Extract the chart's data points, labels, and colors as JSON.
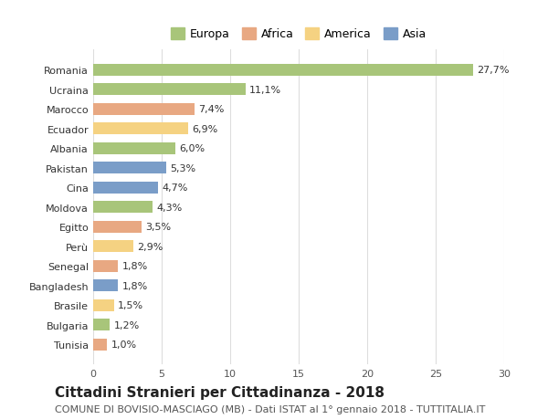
{
  "countries": [
    "Romania",
    "Ucraina",
    "Marocco",
    "Ecuador",
    "Albania",
    "Pakistan",
    "Cina",
    "Moldova",
    "Egitto",
    "Perù",
    "Senegal",
    "Bangladesh",
    "Brasile",
    "Bulgaria",
    "Tunisia"
  ],
  "values": [
    27.7,
    11.1,
    7.4,
    6.9,
    6.0,
    5.3,
    4.7,
    4.3,
    3.5,
    2.9,
    1.8,
    1.8,
    1.5,
    1.2,
    1.0
  ],
  "labels": [
    "27,7%",
    "11,1%",
    "7,4%",
    "6,9%",
    "6,0%",
    "5,3%",
    "4,7%",
    "4,3%",
    "3,5%",
    "2,9%",
    "1,8%",
    "1,8%",
    "1,5%",
    "1,2%",
    "1,0%"
  ],
  "continents": [
    "Europa",
    "Europa",
    "Africa",
    "America",
    "Europa",
    "Asia",
    "Asia",
    "Europa",
    "Africa",
    "America",
    "Africa",
    "Asia",
    "America",
    "Europa",
    "Africa"
  ],
  "continent_colors": {
    "Europa": "#a8c57a",
    "Africa": "#e8a882",
    "America": "#f5d282",
    "Asia": "#7a9dc8"
  },
  "legend_order": [
    "Europa",
    "Africa",
    "America",
    "Asia"
  ],
  "xlim": [
    0,
    30
  ],
  "xticks": [
    0,
    5,
    10,
    15,
    20,
    25,
    30
  ],
  "title": "Cittadini Stranieri per Cittadinanza - 2018",
  "subtitle": "COMUNE DI BOVISIO-MASCIAGO (MB) - Dati ISTAT al 1° gennaio 2018 - TUTTITALIA.IT",
  "background_color": "#ffffff",
  "grid_color": "#dddddd",
  "bar_height": 0.6,
  "title_fontsize": 11,
  "subtitle_fontsize": 8,
  "label_fontsize": 8,
  "tick_fontsize": 8,
  "legend_fontsize": 9
}
